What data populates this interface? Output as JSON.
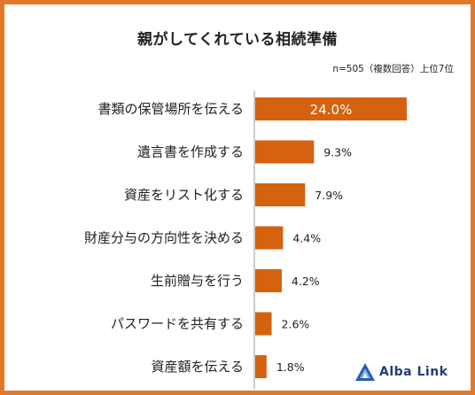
{
  "title": "親がしてくれている相続準備",
  "note": "n=505（複数回答）上位7位",
  "logo_text": "Alba Link",
  "colors": {
    "bar": "#d4620f",
    "frame": "#e07a2a",
    "axis": "#999999"
  },
  "chart_data": {
    "type": "bar",
    "orientation": "horizontal",
    "categories": [
      "書類の保管場所を伝える",
      "遺言書を作成する",
      "資産をリスト化する",
      "財産分与の方向性を決める",
      "生前贈与を行う",
      "パスワードを共有する",
      "資産額を伝える"
    ],
    "values": [
      24.0,
      9.3,
      7.9,
      4.4,
      4.2,
      2.6,
      1.8
    ],
    "value_labels": [
      "24.0%",
      "9.3%",
      "7.9%",
      "4.4%",
      "4.2%",
      "2.6%",
      "1.8%"
    ],
    "unit": "%",
    "xlim": [
      0,
      24.0
    ],
    "grid": false,
    "legend": "none"
  }
}
